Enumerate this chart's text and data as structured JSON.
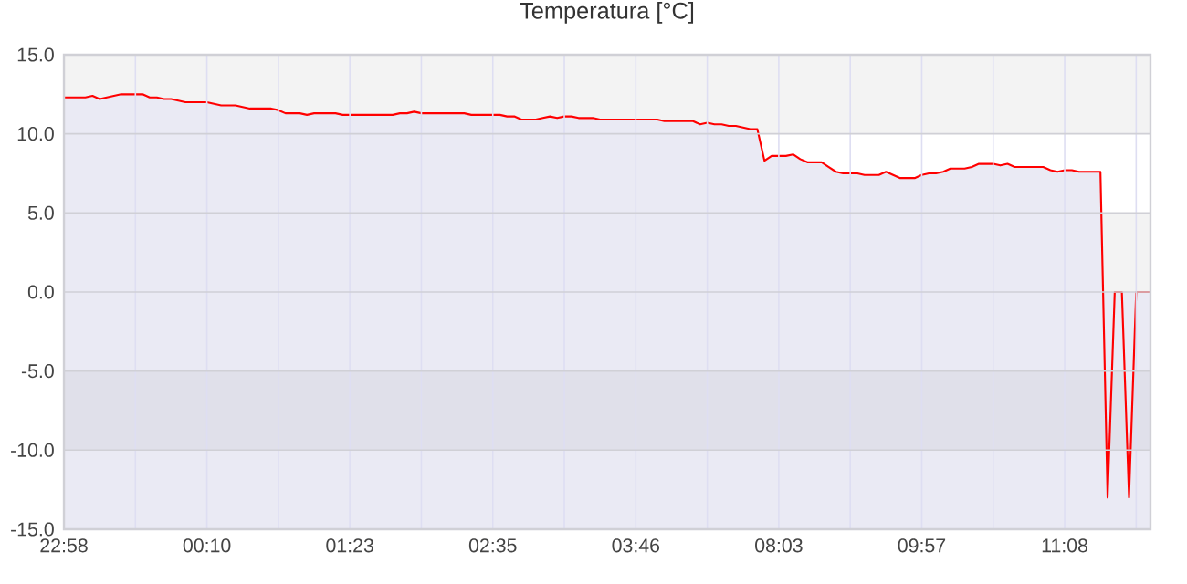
{
  "chart_data": {
    "type": "area",
    "title": "Temperatura [°C]",
    "categories": [
      "22:58",
      null,
      null,
      null,
      null,
      null,
      null,
      null,
      null,
      null,
      null,
      null,
      null,
      null,
      null,
      null,
      null,
      null,
      null,
      null,
      "00:10",
      null,
      null,
      null,
      null,
      null,
      null,
      null,
      null,
      null,
      null,
      null,
      null,
      null,
      null,
      null,
      null,
      null,
      null,
      null,
      "01:23",
      null,
      null,
      null,
      null,
      null,
      null,
      null,
      null,
      null,
      null,
      null,
      null,
      null,
      null,
      null,
      null,
      null,
      null,
      null,
      "02:35",
      null,
      null,
      null,
      null,
      null,
      null,
      null,
      null,
      null,
      null,
      null,
      null,
      null,
      null,
      null,
      null,
      null,
      null,
      null,
      "03:46",
      null,
      null,
      null,
      null,
      null,
      null,
      null,
      null,
      null,
      null,
      null,
      null,
      null,
      null,
      null,
      null,
      null,
      null,
      null,
      "08:03",
      null,
      null,
      null,
      null,
      null,
      null,
      null,
      null,
      null,
      null,
      null,
      null,
      null,
      null,
      null,
      null,
      null,
      null,
      null,
      "09:57",
      null,
      null,
      null,
      null,
      null,
      null,
      null,
      null,
      null,
      null,
      null,
      null,
      null,
      null,
      null,
      null,
      null,
      null,
      null,
      "11:08",
      null,
      null,
      null,
      null,
      null,
      null,
      null,
      null,
      null,
      null,
      null,
      null
    ],
    "values": [
      12.3,
      12.3,
      12.3,
      12.3,
      12.4,
      12.2,
      12.3,
      12.4,
      12.5,
      12.5,
      12.5,
      12.5,
      12.3,
      12.3,
      12.2,
      12.2,
      12.1,
      12.0,
      12.0,
      12.0,
      12.0,
      11.9,
      11.8,
      11.8,
      11.8,
      11.7,
      11.6,
      11.6,
      11.6,
      11.6,
      11.5,
      11.3,
      11.3,
      11.3,
      11.2,
      11.3,
      11.3,
      11.3,
      11.3,
      11.2,
      11.2,
      11.2,
      11.2,
      11.2,
      11.2,
      11.2,
      11.2,
      11.3,
      11.3,
      11.4,
      11.3,
      11.3,
      11.3,
      11.3,
      11.3,
      11.3,
      11.3,
      11.2,
      11.2,
      11.2,
      11.2,
      11.2,
      11.1,
      11.1,
      10.9,
      10.9,
      10.9,
      11.0,
      11.1,
      11.0,
      11.1,
      11.1,
      11.0,
      11.0,
      11.0,
      10.9,
      10.9,
      10.9,
      10.9,
      10.9,
      10.9,
      10.9,
      10.9,
      10.9,
      10.8,
      10.8,
      10.8,
      10.8,
      10.8,
      10.6,
      10.7,
      10.6,
      10.6,
      10.5,
      10.5,
      10.4,
      10.3,
      10.3,
      8.3,
      8.6,
      8.6,
      8.6,
      8.7,
      8.4,
      8.2,
      8.2,
      8.2,
      7.9,
      7.6,
      7.5,
      7.5,
      7.5,
      7.4,
      7.4,
      7.4,
      7.6,
      7.4,
      7.2,
      7.2,
      7.2,
      7.4,
      7.5,
      7.5,
      7.6,
      7.8,
      7.8,
      7.8,
      7.9,
      8.1,
      8.1,
      8.1,
      8.0,
      8.1,
      7.9,
      7.9,
      7.9,
      7.9,
      7.9,
      7.7,
      7.6,
      7.7,
      7.7,
      7.6,
      7.6,
      7.6,
      7.6,
      -13.0,
      0,
      0,
      -13.0,
      0,
      0,
      0
    ],
    "color": "#ff0000",
    "ylim": [
      -15,
      15
    ],
    "yticks": [
      {
        "value": -15,
        "label": "-15.0"
      },
      {
        "value": -10,
        "label": "-10.0"
      },
      {
        "value": -5,
        "label": "-5.0"
      },
      {
        "value": 0,
        "label": "0.0"
      },
      {
        "value": 5,
        "label": "5.0"
      },
      {
        "value": 10,
        "label": "10.0"
      },
      {
        "value": 15,
        "label": "15.0"
      }
    ],
    "grid": true,
    "bands": [
      {
        "axis": "y",
        "from": -15,
        "to": 0,
        "color": "#eaeaf4"
      },
      {
        "axis": "y",
        "from": 10,
        "to": 15,
        "color": "#f3f3f3"
      },
      {
        "axis": "y",
        "from": 0,
        "to": 5,
        "color": "#f3f3f3"
      },
      {
        "axis": "y",
        "from": -10,
        "to": -5,
        "color": "#e0e0ea"
      }
    ]
  }
}
